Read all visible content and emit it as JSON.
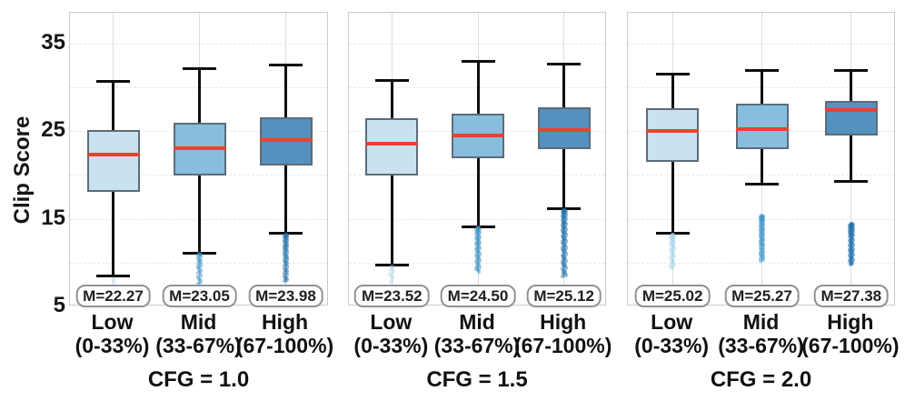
{
  "chart_data": {
    "type": "boxplot",
    "ylabel": "Clip Score",
    "yticks": [
      5,
      15,
      25,
      35
    ],
    "ylim": [
      5.0,
      38.5
    ],
    "gridline_values": [
      10,
      15,
      20,
      25,
      30,
      35
    ],
    "grid": true,
    "legend": "none",
    "panels": [
      {
        "title": "CFG = 1.0",
        "boxes": [
          {
            "tier": "low",
            "label_line1": "Low",
            "label_line2": "(0-33%)",
            "median": 22.27,
            "median_label": "M=22.27",
            "q1": 18.1,
            "q3": 25.1,
            "whisker_low": 8.5,
            "whisker_high": 30.7,
            "outliers": {
              "min": 7.8,
              "max": 8.1,
              "count": 2,
              "alpha": 0.3
            }
          },
          {
            "tier": "mid",
            "label_line1": "Mid",
            "label_line2": "(33-67%)",
            "median": 23.05,
            "median_label": "M=23.05",
            "q1": 19.9,
            "q3": 25.9,
            "whisker_low": 11.1,
            "whisker_high": 32.1,
            "outliers": {
              "min": 7.6,
              "max": 11.0,
              "count": 18,
              "alpha": 0.5
            }
          },
          {
            "tier": "high",
            "label_line1": "High",
            "label_line2": "(67-100%)",
            "median": 23.98,
            "median_label": "M=23.98",
            "q1": 21.1,
            "q3": 26.6,
            "whisker_low": 13.3,
            "whisker_high": 32.5,
            "outliers": {
              "min": 7.9,
              "max": 13.2,
              "count": 38,
              "alpha": 0.5
            }
          }
        ]
      },
      {
        "title": "CFG = 1.5",
        "boxes": [
          {
            "tier": "low",
            "label_line1": "Low",
            "label_line2": "(0-33%)",
            "median": 23.52,
            "median_label": "M=23.52",
            "q1": 19.9,
            "q3": 26.5,
            "whisker_low": 9.7,
            "whisker_high": 30.8,
            "outliers": {
              "min": 7.8,
              "max": 9.5,
              "count": 8,
              "alpha": 0.4
            }
          },
          {
            "tier": "mid",
            "label_line1": "Mid",
            "label_line2": "(33-67%)",
            "median": 24.5,
            "median_label": "M=24.50",
            "q1": 21.9,
            "q3": 27.0,
            "whisker_low": 14.1,
            "whisker_high": 33.0,
            "outliers": {
              "min": 9.0,
              "max": 14.0,
              "count": 42,
              "alpha": 0.5
            }
          },
          {
            "tier": "high",
            "label_line1": "High",
            "label_line2": "(67-100%)",
            "median": 25.12,
            "median_label": "M=25.12",
            "q1": 22.9,
            "q3": 27.7,
            "whisker_low": 16.1,
            "whisker_high": 32.6,
            "outliers": {
              "min": 8.4,
              "max": 16.0,
              "count": 60,
              "alpha": 0.5
            }
          }
        ]
      },
      {
        "title": "CFG = 2.0",
        "boxes": [
          {
            "tier": "low",
            "label_line1": "Low",
            "label_line2": "(0-33%)",
            "median": 25.02,
            "median_label": "M=25.02",
            "q1": 21.5,
            "q3": 27.6,
            "whisker_low": 13.3,
            "whisker_high": 31.5,
            "outliers": {
              "min": 9.4,
              "max": 13.2,
              "count": 26,
              "alpha": 0.5
            }
          },
          {
            "tier": "mid",
            "label_line1": "Mid",
            "label_line2": "(33-67%)",
            "median": 25.27,
            "median_label": "M=25.27",
            "q1": 22.9,
            "q3": 28.1,
            "whisker_low": 19.0,
            "whisker_high": 31.9,
            "outliers": {
              "min": 10.2,
              "max": 15.3,
              "count": 45,
              "alpha": 0.5
            }
          },
          {
            "tier": "high",
            "label_line1": "High",
            "label_line2": "(67-100%)",
            "median": 27.38,
            "median_label": "M=27.38",
            "q1": 24.5,
            "q3": 28.4,
            "whisker_low": 19.3,
            "whisker_high": 31.9,
            "outliers": {
              "min": 9.8,
              "max": 14.4,
              "count": 48,
              "alpha": 0.55
            }
          }
        ]
      }
    ],
    "style": {
      "box_fill": {
        "low": "#c9e2ef",
        "mid": "#87bedd",
        "high": "#5591be"
      },
      "outlier_color": {
        "low": "#a8d2e7",
        "mid": "#3b91c6",
        "high": "#1f6fa9"
      },
      "box_edge": "#5c6c79",
      "median_color": "#e7432f",
      "whisker_color": "#0e0e0e",
      "grid_color": "#e6e9ec"
    }
  }
}
